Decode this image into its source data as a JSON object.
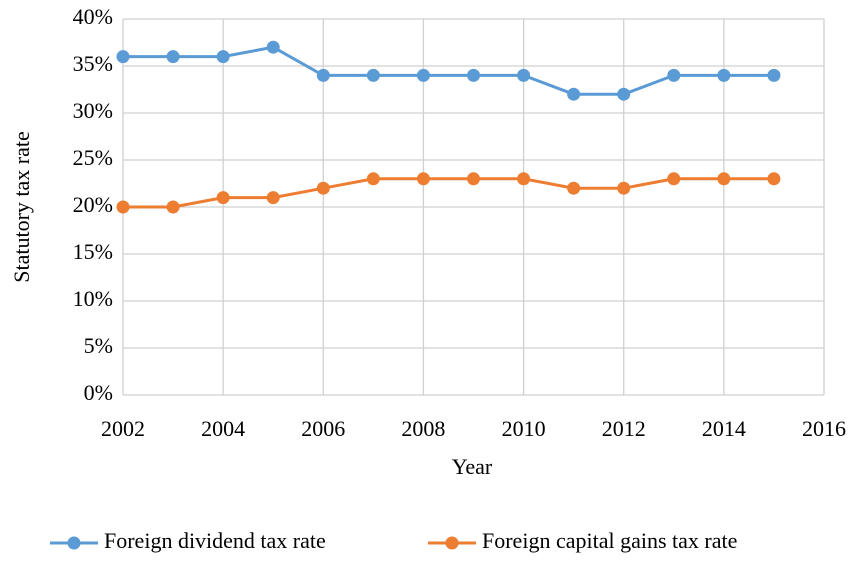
{
  "chart_data": {
    "type": "line",
    "x": [
      2002,
      2003,
      2004,
      2005,
      2006,
      2007,
      2008,
      2009,
      2010,
      2011,
      2012,
      2013,
      2014,
      2015
    ],
    "series": [
      {
        "name": "Foreign dividend tax rate",
        "color": "#5b9bd5",
        "values": [
          36,
          36,
          36,
          37,
          34,
          34,
          34,
          34,
          34,
          32,
          32,
          34,
          34,
          34
        ]
      },
      {
        "name": "Foreign capital gains tax rate",
        "color": "#ed7d31",
        "values": [
          20,
          20,
          21,
          21,
          22,
          23,
          23,
          23,
          23,
          22,
          22,
          23,
          23,
          23
        ]
      }
    ],
    "xlabel": "Year",
    "ylabel": "Statutory tax rate",
    "xlim": [
      2002,
      2016
    ],
    "xticks": [
      2002,
      2004,
      2006,
      2008,
      2010,
      2012,
      2014,
      2016
    ],
    "ylim": [
      0,
      40
    ],
    "yticks": [
      {
        "value": 0,
        "label": "0%"
      },
      {
        "value": 5,
        "label": "5%"
      },
      {
        "value": 10,
        "label": "10%"
      },
      {
        "value": 15,
        "label": "15%"
      },
      {
        "value": 20,
        "label": "20%"
      },
      {
        "value": 25,
        "label": "25%"
      },
      {
        "value": 30,
        "label": "30%"
      },
      {
        "value": 35,
        "label": "35%"
      },
      {
        "value": 40,
        "label": "40%"
      }
    ],
    "grid": true,
    "legend": "bottom"
  }
}
